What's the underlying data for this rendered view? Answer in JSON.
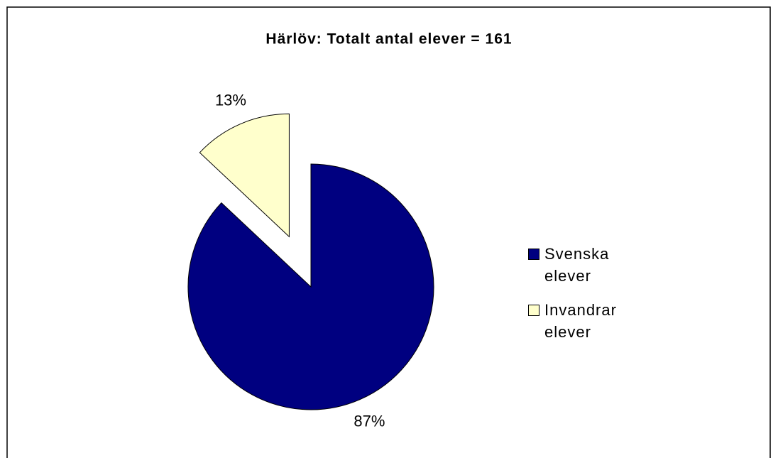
{
  "chart_data": {
    "type": "pie",
    "title": "Härlöv: Totalt antal elever = 161",
    "categories": [
      "Svenska elever",
      "Invandrar elever"
    ],
    "values": [
      87,
      13
    ],
    "value_labels": [
      "87%",
      "13%"
    ],
    "colors": [
      "#000080",
      "#ffffcc"
    ],
    "explode": [
      false,
      true
    ],
    "legend": "right"
  }
}
